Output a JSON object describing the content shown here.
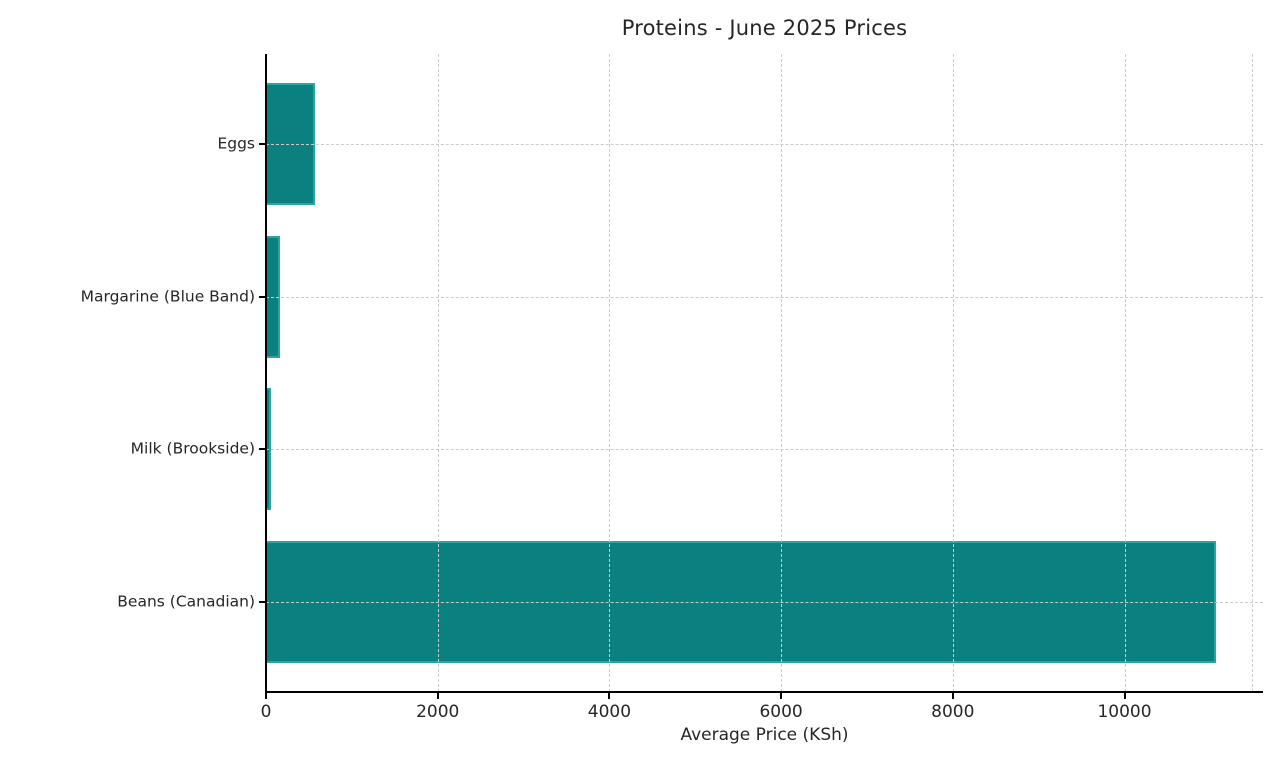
{
  "chart_data": {
    "type": "bar",
    "orientation": "horizontal",
    "title": "Proteins - June 2025 Prices",
    "xlabel": "Average Price (KSh)",
    "ylabel": "",
    "categories": [
      "Eggs",
      "Margarine (Blue Band)",
      "Milk (Brookside)",
      "Beans (Canadian)"
    ],
    "values": [
      575,
      160,
      55,
      11060
    ],
    "xticks": [
      0,
      2000,
      4000,
      6000,
      8000,
      10000
    ],
    "xtick_labels": [
      "0",
      "2000",
      "4000",
      "6000",
      "8000",
      "10000"
    ],
    "xlim": [
      0,
      11613
    ],
    "bar_color": "#0a8080",
    "bar_edge_color": "#2aa69e",
    "grid_color": "#cbcbcb",
    "text_color": "#262626",
    "background_color": "#ffffff",
    "grid": "dashed, both axes, drawn over bars",
    "legend": "none"
  }
}
